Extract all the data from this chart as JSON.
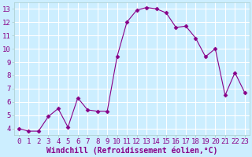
{
  "x": [
    0,
    1,
    2,
    3,
    4,
    5,
    6,
    7,
    8,
    9,
    10,
    11,
    12,
    13,
    14,
    15,
    16,
    17,
    18,
    19,
    20,
    21,
    22,
    23
  ],
  "y": [
    4.0,
    3.8,
    3.8,
    4.9,
    5.5,
    4.1,
    6.3,
    5.4,
    5.3,
    5.3,
    9.4,
    12.0,
    12.9,
    13.1,
    13.0,
    12.7,
    11.6,
    11.7,
    10.8,
    9.4,
    10.0,
    6.5,
    8.2,
    6.7
  ],
  "line_color": "#880088",
  "marker": "D",
  "marker_size": 2.5,
  "bg_color": "#cceeff",
  "grid_color": "#ffffff",
  "xlabel": "Windchill (Refroidissement éolien,°C)",
  "xlabel_fontsize": 7,
  "tick_fontsize": 6.5,
  "tick_color": "#880088",
  "ylim": [
    3.5,
    13.5
  ],
  "xlim": [
    -0.5,
    23.5
  ],
  "yticks": [
    4,
    5,
    6,
    7,
    8,
    9,
    10,
    11,
    12,
    13
  ],
  "xticks": [
    0,
    1,
    2,
    3,
    4,
    5,
    6,
    7,
    8,
    9,
    10,
    11,
    12,
    13,
    14,
    15,
    16,
    17,
    18,
    19,
    20,
    21,
    22,
    23
  ]
}
